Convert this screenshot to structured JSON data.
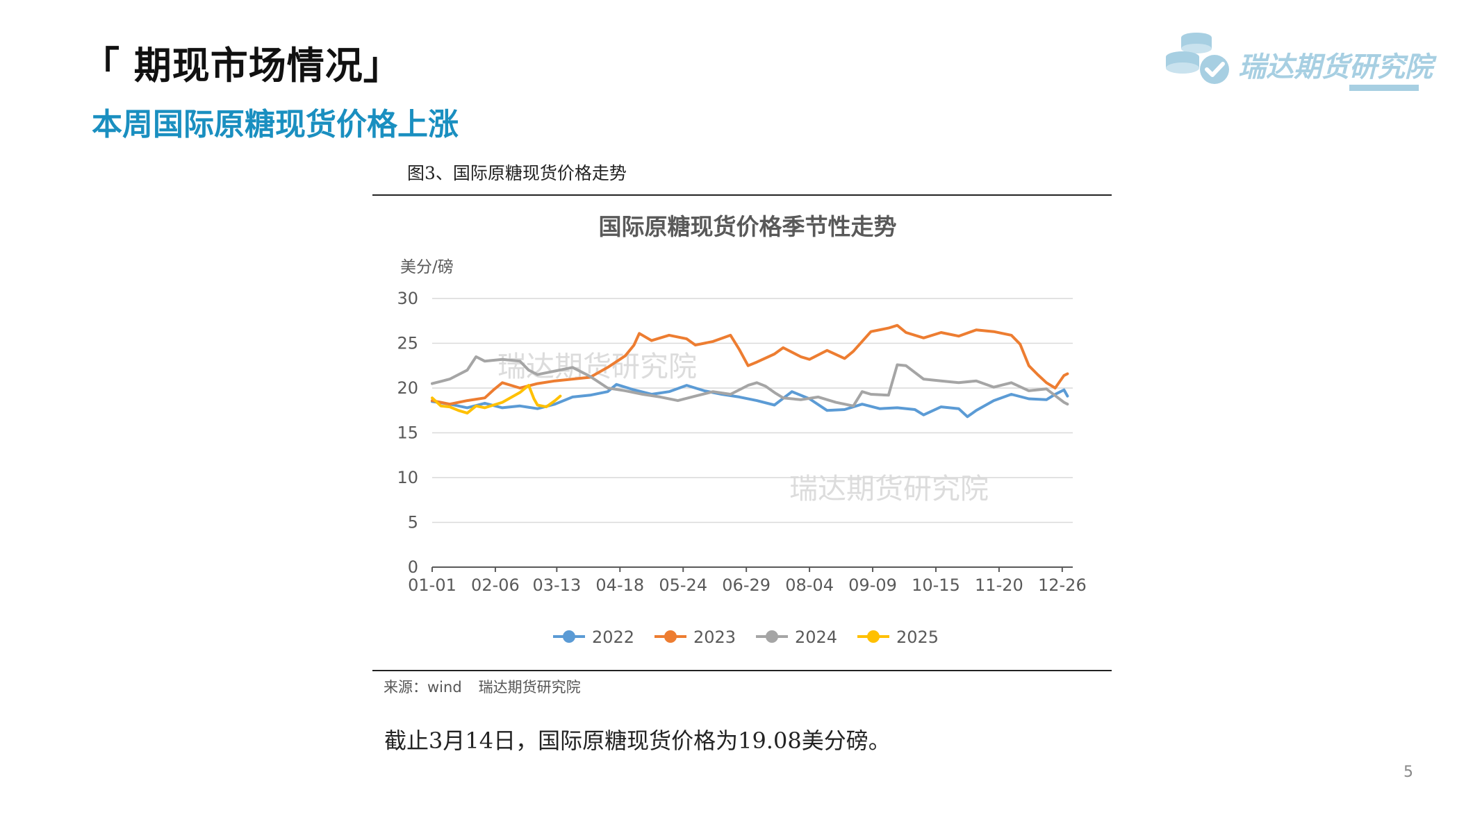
{
  "header": {
    "section_title": "「 期现市场情况」",
    "subtitle": "本周国际原糖现货价格上涨"
  },
  "logo": {
    "text": "瑞达期货研究院",
    "color": "#a7cfe2"
  },
  "figure": {
    "caption": "图3、国际原糖现货价格走势"
  },
  "source": {
    "label": "来源：wind",
    "org": "瑞达期货研究院"
  },
  "note": "截止3月14日，国际原糖现货价格为19.08美分磅。",
  "page_number": "5",
  "chart_data": {
    "type": "line",
    "title": "国际原糖现货价格季节性走势",
    "ylabel": "美分/磅",
    "xlabel": "",
    "ylim": [
      0,
      30
    ],
    "yticks": [
      0,
      5,
      10,
      15,
      20,
      25,
      30
    ],
    "xlim": [
      0,
      365
    ],
    "x_ticks": [
      {
        "day": 0,
        "label": "01-01"
      },
      {
        "day": 36,
        "label": "02-06"
      },
      {
        "day": 71,
        "label": "03-13"
      },
      {
        "day": 107,
        "label": "04-18"
      },
      {
        "day": 143,
        "label": "05-24"
      },
      {
        "day": 179,
        "label": "06-29"
      },
      {
        "day": 215,
        "label": "08-04"
      },
      {
        "day": 251,
        "label": "09-09"
      },
      {
        "day": 287,
        "label": "10-15"
      },
      {
        "day": 323,
        "label": "11-20"
      },
      {
        "day": 359,
        "label": "12-26"
      }
    ],
    "grid": true,
    "legend_position": "bottom",
    "watermarks": [
      "瑞达期货研究院",
      "瑞达期货研究院"
    ],
    "series": [
      {
        "name": "2022",
        "color": "#5b9bd5",
        "x": [
          0,
          10,
          20,
          30,
          40,
          50,
          60,
          70,
          80,
          90,
          100,
          105,
          115,
          125,
          135,
          145,
          155,
          165,
          175,
          185,
          195,
          205,
          215,
          225,
          235,
          245,
          255,
          265,
          275,
          280,
          290,
          300,
          305,
          310,
          320,
          330,
          340,
          350,
          355,
          360,
          362
        ],
        "y": [
          18.5,
          18.2,
          17.8,
          18.3,
          17.8,
          18.0,
          17.7,
          18.2,
          19.0,
          19.2,
          19.6,
          20.4,
          19.8,
          19.3,
          19.6,
          20.3,
          19.7,
          19.3,
          19.0,
          18.6,
          18.1,
          19.6,
          18.8,
          17.5,
          17.6,
          18.2,
          17.7,
          17.8,
          17.6,
          17.0,
          17.9,
          17.7,
          16.8,
          17.5,
          18.6,
          19.3,
          18.8,
          18.7,
          19.3,
          19.8,
          19.1
        ]
      },
      {
        "name": "2023",
        "color": "#ed7d31",
        "x": [
          0,
          10,
          20,
          30,
          35,
          40,
          50,
          60,
          70,
          80,
          90,
          100,
          110,
          115,
          118,
          125,
          135,
          145,
          150,
          160,
          170,
          175,
          180,
          185,
          195,
          200,
          210,
          215,
          225,
          235,
          240,
          250,
          260,
          265,
          270,
          280,
          290,
          300,
          310,
          320,
          330,
          335,
          340,
          345,
          350,
          355,
          360,
          362
        ],
        "y": [
          18.6,
          18.2,
          18.6,
          18.9,
          19.8,
          20.6,
          20.0,
          20.5,
          20.8,
          21.0,
          21.2,
          22.3,
          23.6,
          24.8,
          26.1,
          25.3,
          25.9,
          25.5,
          24.8,
          25.2,
          25.9,
          24.3,
          22.5,
          22.9,
          23.8,
          24.5,
          23.5,
          23.2,
          24.2,
          23.3,
          24.1,
          26.3,
          26.7,
          27.0,
          26.2,
          25.6,
          26.2,
          25.8,
          26.5,
          26.3,
          25.9,
          24.9,
          22.5,
          21.5,
          20.6,
          20.0,
          21.4,
          21.6
        ]
      },
      {
        "name": "2024",
        "color": "#a5a5a5",
        "x": [
          0,
          10,
          20,
          25,
          30,
          40,
          50,
          55,
          60,
          70,
          80,
          90,
          100,
          110,
          120,
          130,
          140,
          150,
          160,
          170,
          180,
          185,
          190,
          195,
          200,
          210,
          220,
          230,
          240,
          245,
          250,
          260,
          265,
          270,
          280,
          290,
          300,
          310,
          320,
          330,
          340,
          350,
          360,
          362
        ],
        "y": [
          20.5,
          21.0,
          22.0,
          23.5,
          23.0,
          23.2,
          23.0,
          22.0,
          21.5,
          21.9,
          22.3,
          21.3,
          20.0,
          19.7,
          19.3,
          19.0,
          18.6,
          19.1,
          19.6,
          19.3,
          20.3,
          20.6,
          20.2,
          19.5,
          18.9,
          18.7,
          19.0,
          18.4,
          18.0,
          19.6,
          19.3,
          19.2,
          22.6,
          22.5,
          21.0,
          20.8,
          20.6,
          20.8,
          20.1,
          20.6,
          19.7,
          19.9,
          18.4,
          18.2
        ]
      },
      {
        "name": "2025",
        "color": "#ffc000",
        "x": [
          0,
          5,
          10,
          15,
          20,
          25,
          30,
          40,
          50,
          55,
          58,
          60,
          65,
          70,
          73
        ],
        "y": [
          18.9,
          18.0,
          17.9,
          17.5,
          17.2,
          18.0,
          17.8,
          18.4,
          19.5,
          20.3,
          18.8,
          18.1,
          17.9,
          18.6,
          19.1
        ]
      }
    ]
  }
}
